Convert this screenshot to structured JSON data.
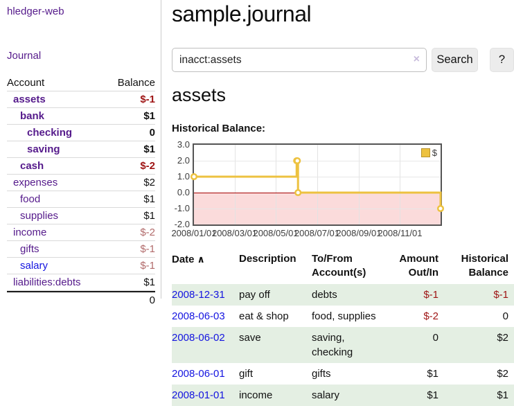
{
  "app_title": "hledger-web",
  "sidebar": {
    "journal_link": "Journal",
    "accounts": {
      "header_account": "Account",
      "header_balance": "Balance",
      "rows": [
        {
          "name": "assets",
          "balance": "$-1"
        },
        {
          "name": "bank",
          "balance": "$1"
        },
        {
          "name": "checking",
          "balance": "0"
        },
        {
          "name": "saving",
          "balance": "$1"
        },
        {
          "name": "cash",
          "balance": "$-2"
        },
        {
          "name": "expenses",
          "balance": "$2"
        },
        {
          "name": "food",
          "balance": "$1"
        },
        {
          "name": "supplies",
          "balance": "$1"
        },
        {
          "name": "income",
          "balance": "$-2"
        },
        {
          "name": "gifts",
          "balance": "$-1"
        },
        {
          "name": "salary",
          "balance": "$-1"
        },
        {
          "name": "liabilities:debts",
          "balance": "$1"
        }
      ],
      "total": "0"
    }
  },
  "main": {
    "title": "sample.journal",
    "search": {
      "value": "inacct:assets",
      "clear_icon": "×",
      "search_button": "Search",
      "help_button": "?"
    },
    "heading": "assets",
    "chart_label": "Historical Balance:"
  },
  "chart_data": {
    "type": "line",
    "step": true,
    "title": "Historical Balance",
    "series": [
      {
        "name": "$",
        "color": "#edc240",
        "points": [
          [
            "2008-01-01",
            1
          ],
          [
            "2008-06-01",
            2
          ],
          [
            "2008-06-02",
            2
          ],
          [
            "2008-06-03",
            0
          ],
          [
            "2008-12-31",
            -1
          ]
        ]
      }
    ],
    "x_domain": [
      "2008-01-01",
      "2008-12-31"
    ],
    "ylim": [
      -2,
      3
    ],
    "y_ticks": [
      {
        "value": 3,
        "label": "3.0"
      },
      {
        "value": 2,
        "label": "2.0"
      },
      {
        "value": 1,
        "label": "1.0"
      },
      {
        "value": 0,
        "label": "0.0"
      },
      {
        "value": -1,
        "label": "-1.0"
      },
      {
        "value": -2,
        "label": "-2.0"
      }
    ],
    "x_ticks": [
      {
        "date": "2008-01-01",
        "label": "2008/01/01"
      },
      {
        "date": "2008-03-01",
        "label": "2008/03/01"
      },
      {
        "date": "2008-05-01",
        "label": "2008/05/01"
      },
      {
        "date": "2008-07-01",
        "label": "2008/07/01"
      },
      {
        "date": "2008-09-01",
        "label": "2008/09/01"
      },
      {
        "date": "2008-11-01",
        "label": "2008/11/01"
      }
    ],
    "legend": {
      "label": "$",
      "position": "top-right"
    },
    "negative_region_color": "#fbdbdb",
    "zero_line_color": "#a40000",
    "grid": true
  },
  "register": {
    "headers": {
      "date": "Date",
      "sort_icon": "∧",
      "description": "Description",
      "accounts_line1": "To/From",
      "accounts_line2": "Account(s)",
      "amount_line1": "Amount",
      "amount_line2": "Out/In",
      "balance_line1": "Historical",
      "balance_line2": "Balance"
    },
    "rows": [
      {
        "date": "2008-12-31",
        "description": "pay off",
        "accounts": "debts",
        "amount": "$-1",
        "balance": "$-1"
      },
      {
        "date": "2008-06-03",
        "description": "eat & shop",
        "accounts": "food, supplies",
        "amount": "$-2",
        "balance": "0"
      },
      {
        "date": "2008-06-02",
        "description": "save",
        "accounts": "saving, checking",
        "amount": "0",
        "balance": "$2"
      },
      {
        "date": "2008-06-01",
        "description": "gift",
        "accounts": "gifts",
        "amount": "$1",
        "balance": "$2"
      },
      {
        "date": "2008-01-01",
        "description": "income",
        "accounts": "salary",
        "amount": "$1",
        "balance": "$1"
      }
    ]
  },
  "colors": {
    "link_purple": "#551a8b",
    "link_blue": "#1414e0",
    "negative_strong": "#9e1414",
    "negative_muted": "#b26b6b",
    "row_green": "#e4efe3",
    "chart_gold": "#edc240"
  }
}
